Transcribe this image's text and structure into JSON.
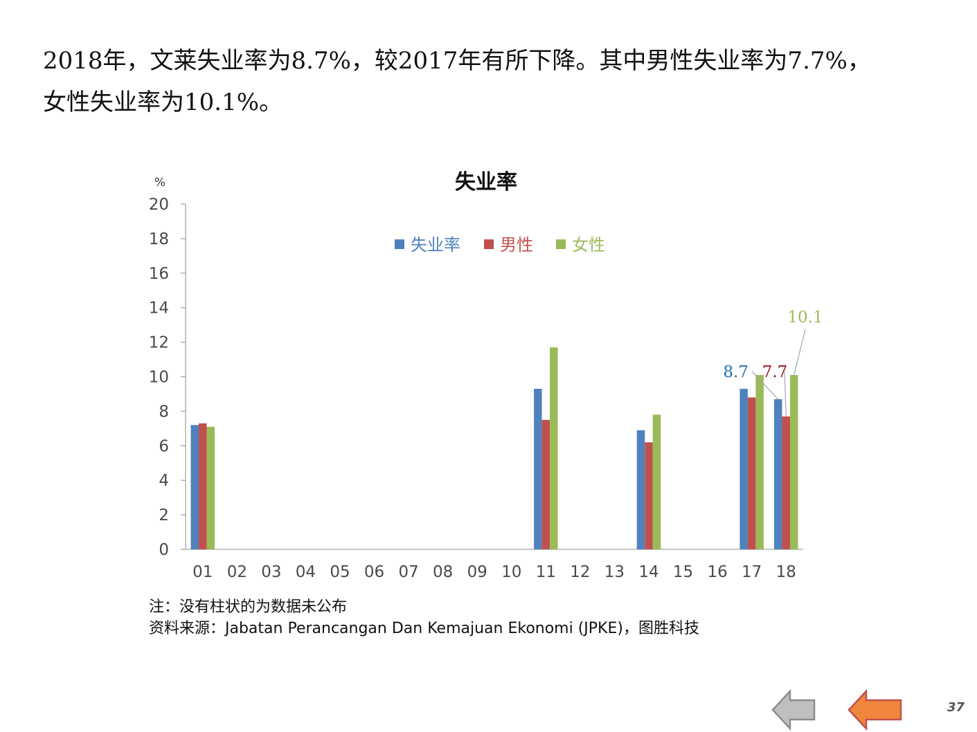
{
  "intro": {
    "line1": "2018年，文莱失业率为8.7%，较2017年有所下降。其中男性失业率为7.7%，",
    "line2": "女性失业率为10.1%。"
  },
  "footer": {
    "note": "注：没有柱状的为数据未公布",
    "source": "资料来源：Jabatan Perancangan Dan Kemajuan Ekonomi (JPKE)，图胜科技"
  },
  "nav": {
    "back_icon": "left-arrow-gray",
    "prev_icon": "left-arrow-orange",
    "back_color": "#bfbfbf",
    "prev_color": "#f0863b"
  },
  "page_number": "37",
  "chart_data": {
    "type": "bar",
    "title": "失业率",
    "ylabel": "%",
    "xlabel": "",
    "ylim": [
      0,
      20
    ],
    "yticks": [
      "0",
      "2",
      "4",
      "6",
      "8",
      "10",
      "12",
      "14",
      "16",
      "18",
      "20"
    ],
    "categories": [
      "01",
      "02",
      "03",
      "04",
      "05",
      "06",
      "07",
      "08",
      "09",
      "10",
      "11",
      "12",
      "13",
      "14",
      "15",
      "16",
      "17",
      "18"
    ],
    "series": [
      {
        "name": "失业率",
        "color": "#4f81bd",
        "values": [
          7.2,
          null,
          null,
          null,
          null,
          null,
          null,
          null,
          null,
          null,
          9.3,
          null,
          null,
          6.9,
          null,
          null,
          9.3,
          8.7
        ]
      },
      {
        "name": "男性",
        "color": "#c0504d",
        "values": [
          7.3,
          null,
          null,
          null,
          null,
          null,
          null,
          null,
          null,
          null,
          7.5,
          null,
          null,
          6.2,
          null,
          null,
          8.8,
          7.7
        ]
      },
      {
        "name": "女性",
        "color": "#9bbb59",
        "values": [
          7.1,
          null,
          null,
          null,
          null,
          null,
          null,
          null,
          null,
          null,
          11.7,
          null,
          null,
          7.8,
          null,
          null,
          10.1,
          10.1
        ]
      }
    ],
    "grid": false,
    "legend": "top-center",
    "data_labels": [
      {
        "series": 0,
        "category": "18",
        "text": "8.7",
        "color": "#1f6fb5"
      },
      {
        "series": 1,
        "category": "18",
        "text": "7.7",
        "color": "#a0141e"
      },
      {
        "series": 2,
        "category": "18",
        "text": "10.1",
        "color": "#9bbb59"
      }
    ]
  }
}
